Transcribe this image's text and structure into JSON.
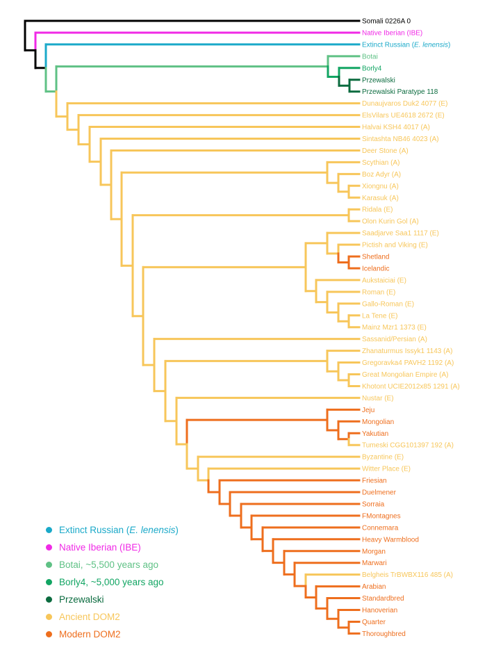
{
  "colors": {
    "outgroup": "#000000",
    "iberian": "#f02ae6",
    "russian": "#1aa9c9",
    "botai": "#5fc185",
    "borly4": "#12a563",
    "przewalski": "#0b6b3f",
    "ancient": "#f7c65a",
    "modern": "#ee6e1d"
  },
  "leaves": [
    {
      "label": "Somali 0226A 0",
      "group": "outgroup"
    },
    {
      "label": "Native Iberian (IBE)",
      "group": "iberian"
    },
    {
      "label": "Extinct Russian (",
      "italic": "E. lenensis",
      "suffix": ")",
      "group": "russian"
    },
    {
      "label": "Botai",
      "group": "botai"
    },
    {
      "label": "Borly4",
      "group": "borly4"
    },
    {
      "label": "Przewalski",
      "group": "przewalski"
    },
    {
      "label": "Przewalski Paratype 118",
      "group": "przewalski"
    },
    {
      "label": "Dunaujvaros Duk2 4077 (E)",
      "group": "ancient"
    },
    {
      "label": "ElsVilars UE4618 2672 (E)",
      "group": "ancient"
    },
    {
      "label": "Halvai KSH4 4017 (A)",
      "group": "ancient"
    },
    {
      "label": "Sintashta NB46 4023 (A)",
      "group": "ancient"
    },
    {
      "label": "Deer Stone (A)",
      "group": "ancient"
    },
    {
      "label": "Scythian (A)",
      "group": "ancient"
    },
    {
      "label": "Boz Adyr (A)",
      "group": "ancient"
    },
    {
      "label": "Xiongnu (A)",
      "group": "ancient"
    },
    {
      "label": "Karasuk (A)",
      "group": "ancient"
    },
    {
      "label": "Ridala (E)",
      "group": "ancient"
    },
    {
      "label": "Olon Kurin Gol (A)",
      "group": "ancient"
    },
    {
      "label": "Saadjarve Saa1 1117 (E)",
      "group": "ancient"
    },
    {
      "label": "Pictish and Viking (E)",
      "group": "ancient"
    },
    {
      "label": "Shetland",
      "group": "modern"
    },
    {
      "label": "Icelandic",
      "group": "modern"
    },
    {
      "label": "Aukstaiciai (E)",
      "group": "ancient"
    },
    {
      "label": "Roman (E)",
      "group": "ancient"
    },
    {
      "label": "Gallo-Roman (E)",
      "group": "ancient"
    },
    {
      "label": "La Tene (E)",
      "group": "ancient"
    },
    {
      "label": "Mainz Mzr1 1373 (E)",
      "group": "ancient"
    },
    {
      "label": "Sassanid/Persian (A)",
      "group": "ancient"
    },
    {
      "label": "Zhanaturmus Issyk1 1143 (A)",
      "group": "ancient"
    },
    {
      "label": "Gregoravka4 PAVH2 1192 (A)",
      "group": "ancient"
    },
    {
      "label": "Great Mongolian Empire (A)",
      "group": "ancient"
    },
    {
      "label": "Khotont UCIE2012x85 1291 (A)",
      "group": "ancient"
    },
    {
      "label": "Nustar (E)",
      "group": "ancient"
    },
    {
      "label": "Jeju",
      "group": "modern"
    },
    {
      "label": "Mongolian",
      "group": "modern"
    },
    {
      "label": "Yakutian",
      "group": "modern"
    },
    {
      "label": "Tumeski CGG101397 192 (A)",
      "group": "ancient"
    },
    {
      "label": "Byzantine (E)",
      "group": "ancient"
    },
    {
      "label": "Witter Place (E)",
      "group": "ancient"
    },
    {
      "label": "Friesian",
      "group": "modern"
    },
    {
      "label": "Duelmener",
      "group": "modern"
    },
    {
      "label": "Sorraia",
      "group": "modern"
    },
    {
      "label": "FMontagnes",
      "group": "modern"
    },
    {
      "label": "Connemara",
      "group": "modern"
    },
    {
      "label": "Heavy Warmblood",
      "group": "modern"
    },
    {
      "label": "Morgan",
      "group": "modern"
    },
    {
      "label": "Marwari",
      "group": "modern"
    },
    {
      "label": "Belgheis TrBWBX116 485 (A)",
      "group": "ancient"
    },
    {
      "label": "Arabian",
      "group": "modern"
    },
    {
      "label": "Standardbred",
      "group": "modern"
    },
    {
      "label": "Hanoverian",
      "group": "modern"
    },
    {
      "label": "Quarter",
      "group": "modern"
    },
    {
      "label": "Thoroughbred",
      "group": "modern"
    }
  ],
  "legend": [
    {
      "label": "Extinct Russian (",
      "italic": "E. lenensis",
      "suffix": ")",
      "group": "russian"
    },
    {
      "label": "Native Iberian (IBE)",
      "group": "iberian"
    },
    {
      "label": "Botai, ~5,500 years ago",
      "group": "botai"
    },
    {
      "label": "Borly4, ~5,000 years ago",
      "group": "borly4"
    },
    {
      "label": "Przewalski",
      "group": "przewalski"
    },
    {
      "label": "Ancient DOM2",
      "group": "ancient"
    },
    {
      "label": "Modern DOM2",
      "group": "modern"
    }
  ]
}
